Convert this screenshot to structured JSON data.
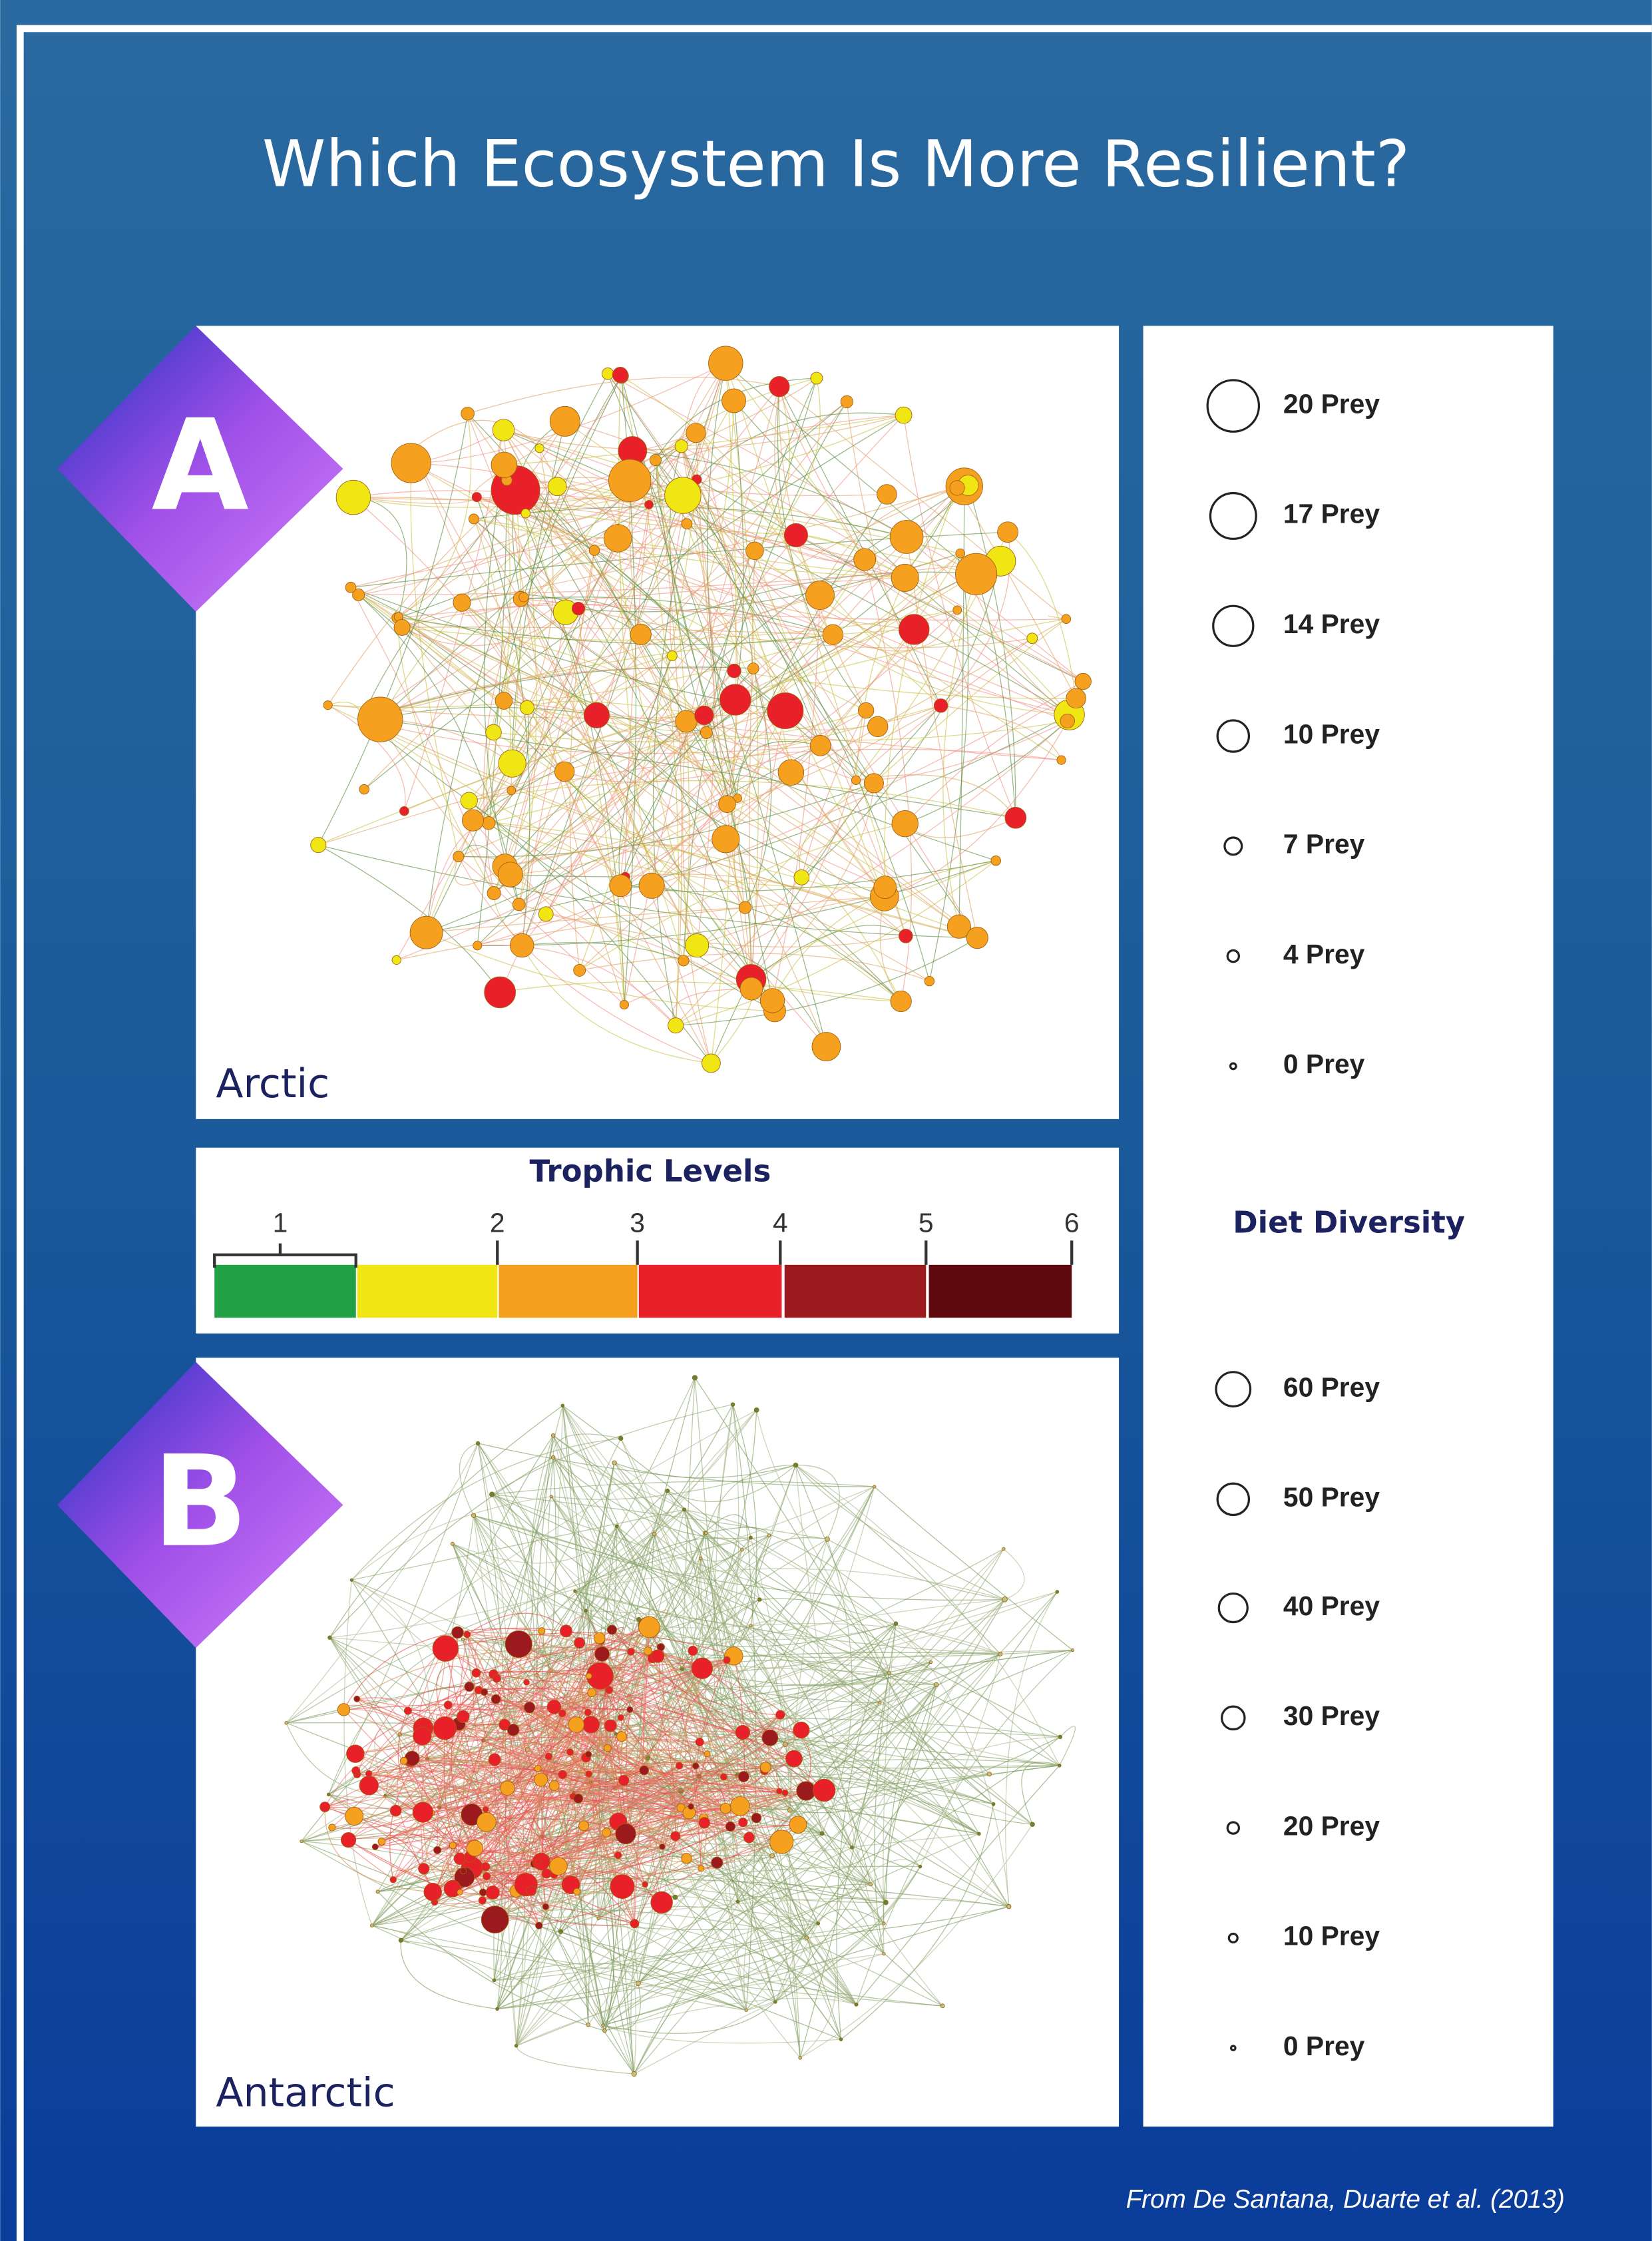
{
  "title": "Which Ecosystem Is More Resilient?",
  "panels": [
    {
      "letter": "A",
      "label": "Arctic"
    },
    {
      "letter": "B",
      "label": "Antarctic"
    }
  ],
  "trophic_levels": {
    "title": "Trophic Levels",
    "ticks": [
      1,
      2,
      3,
      4,
      5,
      6
    ],
    "colors": [
      "#22a046",
      "#f0e614",
      "#f5a01e",
      "#e8202a",
      "#9a1a1e",
      "#5e0a0e"
    ]
  },
  "prey_legend": {
    "items": [
      "20 Prey",
      "17 Prey",
      "14 Prey",
      "10 Prey",
      "7 Prey",
      "4 Prey",
      "0 Prey"
    ]
  },
  "diet_diversity": {
    "title": "Diet Diversity",
    "items": [
      "60 Prey",
      "50 Prey",
      "40 Prey",
      "30 Prey",
      "20 Prey",
      "10 Prey",
      "0 Prey"
    ]
  },
  "credit": "From De Santana, Duarte et al. (2013)"
}
